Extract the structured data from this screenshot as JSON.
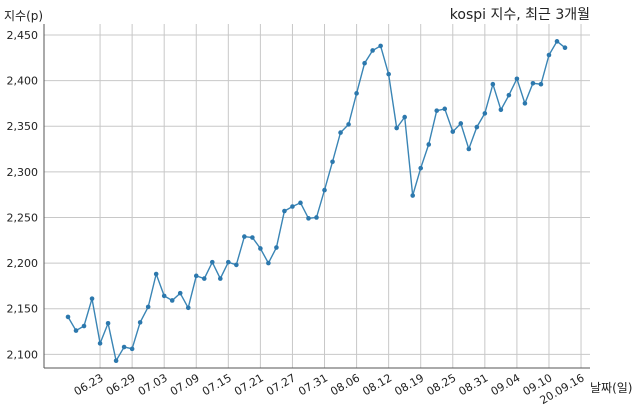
{
  "chart_data": {
    "type": "line",
    "title": "kospi 지수, 최근 3개월",
    "xlabel": "날짜(일)",
    "ylabel": "지수(p)",
    "ylim": [
      2085,
      2462
    ],
    "yticks": [
      2100,
      2150,
      2200,
      2250,
      2300,
      2350,
      2400,
      2450
    ],
    "ytick_labels": [
      "2,100",
      "2,150",
      "2,200",
      "2,250",
      "2,300",
      "2,350",
      "2,400",
      "2,450"
    ],
    "grid": true,
    "series_color": "#3a85b5",
    "xtick_labels": [
      "06.23",
      "06.29",
      "07.03",
      "07.09",
      "07.15",
      "07.21",
      "07.27",
      "07.31",
      "08.06",
      "08.12",
      "08.19",
      "08.25",
      "08.31",
      "09.04",
      "09.10",
      "20.09.16"
    ],
    "xtick_index": [
      4,
      8,
      12,
      16,
      20,
      24,
      28,
      32,
      36,
      40,
      44,
      48,
      52,
      56,
      60,
      64
    ],
    "values": [
      2141,
      2126,
      2131,
      2161,
      2112,
      2134,
      2093,
      2108,
      2106,
      2135,
      2152,
      2188,
      2164,
      2159,
      2167,
      2151,
      2186,
      2183,
      2201,
      2183,
      2201,
      2198,
      2229,
      2228,
      2216,
      2200,
      2217,
      2257,
      2262,
      2266,
      2249,
      2250,
      2280,
      2311,
      2343,
      2352,
      2386,
      2419,
      2433,
      2438,
      2407,
      2348,
      2360,
      2274,
      2304,
      2330,
      2367,
      2369,
      2344,
      2353,
      2325,
      2349,
      2364,
      2396,
      2368,
      2384,
      2402,
      2375,
      2397,
      2396,
      2428,
      2443,
      2436
    ]
  }
}
